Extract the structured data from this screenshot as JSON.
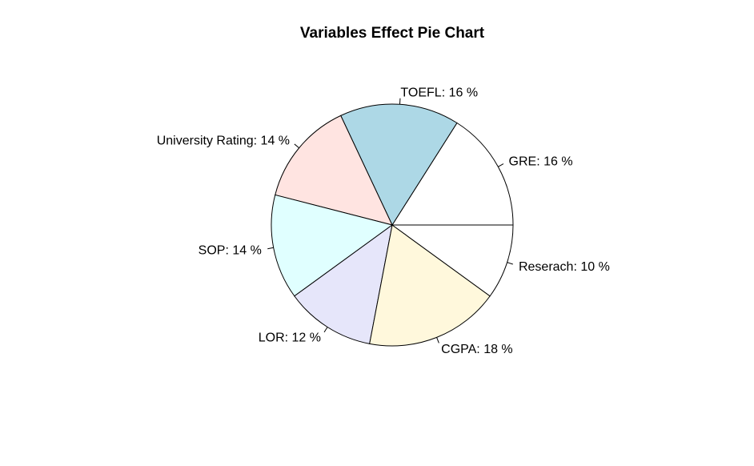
{
  "chart_data": {
    "type": "pie",
    "title": "Variables Effect Pie Chart",
    "direction": "counterclockwise",
    "start_angle_deg": 0,
    "slices": [
      {
        "name": "GRE",
        "value": 16,
        "label": "GRE:  16 %",
        "color": "#ffffff"
      },
      {
        "name": "TOEFL",
        "value": 16,
        "label": "TOEFL:  16 %",
        "color": "#add8e6"
      },
      {
        "name": "University Rating",
        "value": 14,
        "label": "University Rating:  14 %",
        "color": "#ffe4e1"
      },
      {
        "name": "SOP",
        "value": 14,
        "label": "SOP:  14 %",
        "color": "#e0ffff"
      },
      {
        "name": "LOR",
        "value": 12,
        "label": "LOR:  12 %",
        "color": "#e6e6fa"
      },
      {
        "name": "CGPA",
        "value": 18,
        "label": "CGPA:  18 %",
        "color": "#fff8dc"
      },
      {
        "name": "Reserach",
        "value": 10,
        "label": "Reserach:  10 %",
        "color": "#ffffff"
      }
    ]
  }
}
